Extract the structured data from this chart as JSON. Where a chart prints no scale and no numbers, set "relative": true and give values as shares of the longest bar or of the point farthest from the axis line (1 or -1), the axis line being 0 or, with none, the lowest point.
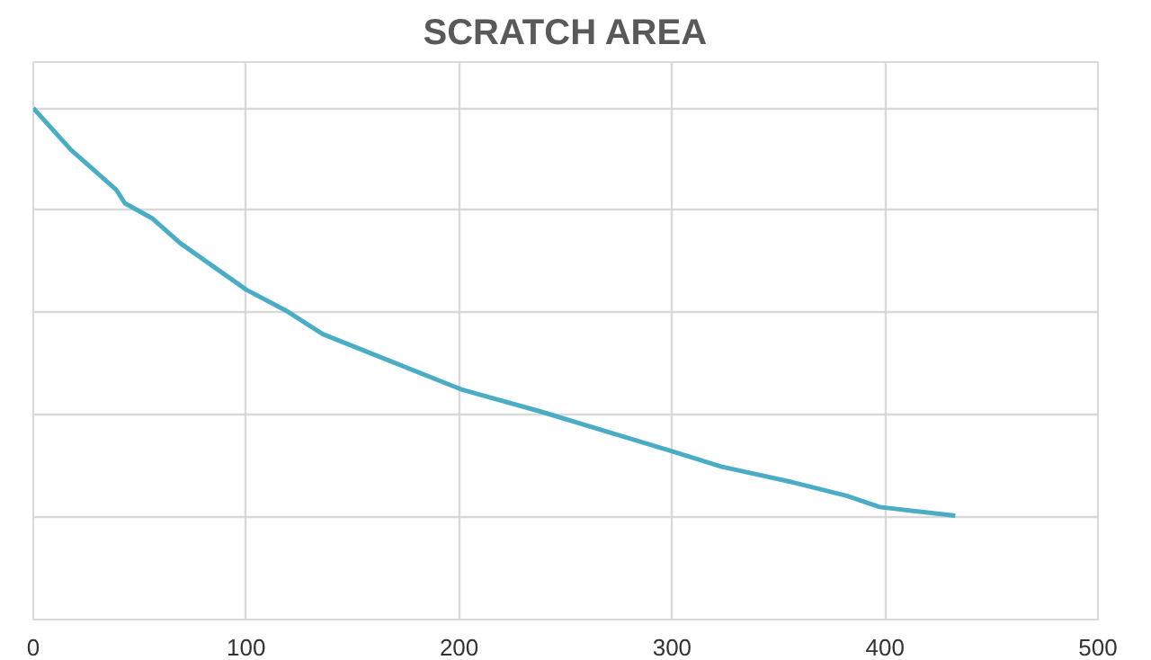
{
  "chart_data": {
    "type": "line",
    "title": "SCRATCH AREA",
    "relative": true,
    "xlim": [
      0,
      500
    ],
    "xticks": [
      0,
      100,
      200,
      300,
      400,
      500
    ],
    "grid": true,
    "marker": "none",
    "line_style": "solid",
    "series": [
      {
        "color": "#4aacc5",
        "x": [
          0,
          17.8,
          39,
          43,
          56,
          69,
          100,
          119.5,
          136,
          161.9,
          201,
          238,
          272,
          300,
          323,
          357,
          382,
          397.5,
          433
        ],
        "values": [
          1.0,
          0.918,
          0.84,
          0.814,
          0.784,
          0.736,
          0.645,
          0.602,
          0.558,
          0.515,
          0.45,
          0.407,
          0.364,
          0.329,
          0.299,
          0.268,
          0.242,
          0.22,
          0.203
        ]
      }
    ]
  }
}
